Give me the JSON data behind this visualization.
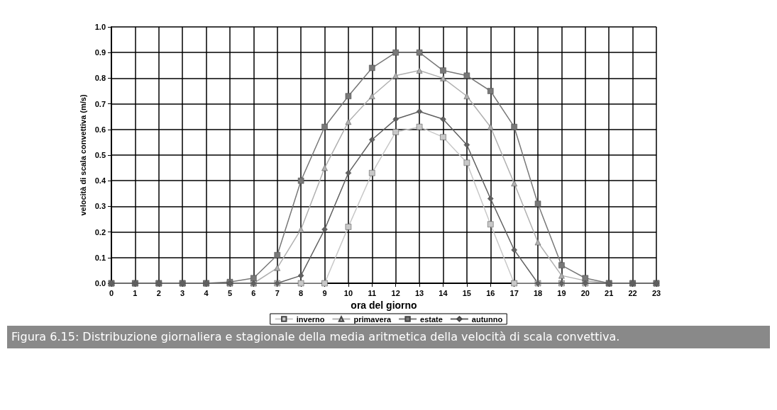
{
  "chart_data": {
    "type": "line",
    "xlabel": "ora del giorno",
    "ylabel": "velocità di scala convettiva (m/s)",
    "x": [
      0,
      1,
      2,
      3,
      4,
      5,
      6,
      7,
      8,
      9,
      10,
      11,
      12,
      13,
      14,
      15,
      16,
      17,
      18,
      19,
      20,
      21,
      22,
      23
    ],
    "series": [
      {
        "name": "inverno",
        "color": "#c8c8c8",
        "marker": "square",
        "values": [
          0,
          0,
          0,
          0,
          0,
          0,
          0,
          0,
          0,
          0,
          0.22,
          0.43,
          0.59,
          0.61,
          0.57,
          0.47,
          0.23,
          0,
          0,
          0,
          0,
          0,
          0,
          0
        ]
      },
      {
        "name": "primavera",
        "color": "#b0b0b0",
        "marker": "triangle",
        "values": [
          0,
          0,
          0,
          0,
          0,
          0,
          0,
          0.06,
          0.21,
          0.45,
          0.63,
          0.73,
          0.81,
          0.83,
          0.8,
          0.73,
          0.61,
          0.39,
          0.16,
          0.03,
          0.01,
          0,
          0,
          0
        ]
      },
      {
        "name": "estate",
        "color": "#787878",
        "marker": "square",
        "values": [
          0,
          0,
          0,
          0,
          0,
          0.005,
          0.02,
          0.11,
          0.4,
          0.61,
          0.73,
          0.84,
          0.9,
          0.9,
          0.83,
          0.81,
          0.75,
          0.61,
          0.31,
          0.07,
          0.02,
          0,
          0,
          0
        ]
      },
      {
        "name": "autunno",
        "color": "#606060",
        "marker": "diamond",
        "values": [
          0,
          0,
          0,
          0,
          0,
          0,
          0,
          0,
          0.03,
          0.21,
          0.43,
          0.56,
          0.64,
          0.67,
          0.64,
          0.54,
          0.33,
          0.13,
          0,
          0,
          0,
          0,
          0,
          0
        ]
      }
    ],
    "xlim": [
      0,
      23
    ],
    "xticks": [
      0,
      1,
      2,
      3,
      4,
      5,
      6,
      7,
      8,
      9,
      10,
      11,
      12,
      13,
      14,
      15,
      16,
      17,
      18,
      19,
      20,
      21,
      22,
      23
    ],
    "ylim": [
      0,
      1
    ],
    "yticks": [
      {
        "value": 0,
        "label": "0.0"
      },
      {
        "value": 0.1,
        "label": "0.1"
      },
      {
        "value": 0.2,
        "label": "0.2"
      },
      {
        "value": 0.3,
        "label": "0.3"
      },
      {
        "value": 0.4,
        "label": "0.4"
      },
      {
        "value": 0.5,
        "label": "0.5"
      },
      {
        "value": 0.6,
        "label": "0.6"
      },
      {
        "value": 0.7,
        "label": "0.7"
      },
      {
        "value": 0.8,
        "label": "0.8"
      },
      {
        "value": 0.9,
        "label": "0.9"
      },
      {
        "value": 1,
        "label": "1.0"
      }
    ],
    "grid": true,
    "legend": "bottom",
    "line_style": "solid",
    "annotations": [
      "Figura 6.15: Distribuzione giornaliera e stagionale della media aritmetica della velocità di scala convettiva."
    ]
  }
}
